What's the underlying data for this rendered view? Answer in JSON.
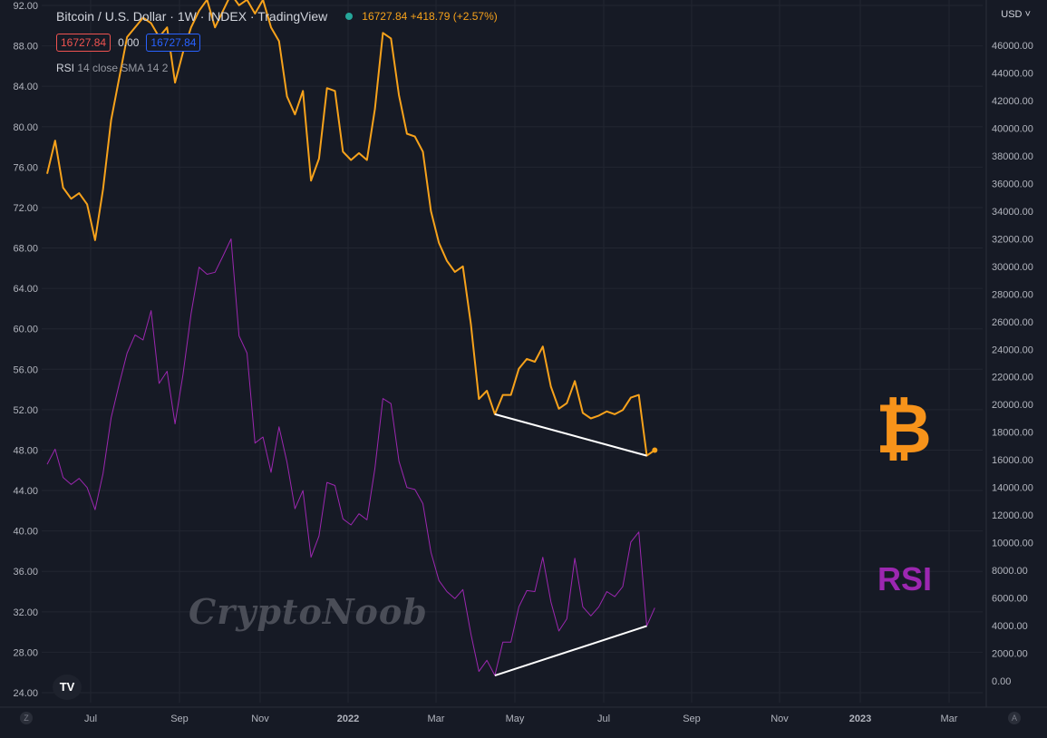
{
  "header": {
    "title": "Bitcoin / U.S. Dollar · 1W · INDEX · TradingView",
    "quote": "16727.84 +418.79 (+2.57%)",
    "value_red": "16727.84",
    "value_zero": "0.00",
    "value_blue": "16727.84",
    "indicator_name": "RSI",
    "indicator_params": "14 close SMA 14 2",
    "currency": "USD"
  },
  "annotations": {
    "btc_symbol": "₿",
    "rsi_text": "RSI",
    "watermark": "CryptoNoob",
    "tv_logo": "TV",
    "corner_left": "Z",
    "corner_right": "A"
  },
  "colors": {
    "background": "#161a25",
    "price_line": "#f7a21b",
    "rsi_line": "#9c27b0",
    "trend_line": "#ffffff",
    "grid": "#222631",
    "axis_text": "#b2b5be"
  },
  "chart_data": {
    "type": "line",
    "title": "Bitcoin / U.S. Dollar · 1W · INDEX · TradingView",
    "x_ticks": [
      "Jul",
      "Sep",
      "Nov",
      "2022",
      "Mar",
      "May",
      "Jul",
      "Sep",
      "Nov",
      "2023",
      "Mar"
    ],
    "left_axis": {
      "label": "RSI",
      "ticks": [
        "24.00",
        "28.00",
        "32.00",
        "36.00",
        "40.00",
        "44.00",
        "48.00",
        "52.00",
        "56.00",
        "60.00",
        "64.00",
        "68.00",
        "72.00",
        "76.00",
        "80.00",
        "84.00",
        "88.00",
        "92.00"
      ],
      "ylim": [
        24,
        92
      ]
    },
    "right_axis": {
      "label": "USD",
      "ticks": [
        "0.00",
        "2000.00",
        "4000.00",
        "6000.00",
        "8000.00",
        "10000.00",
        "12000.00",
        "14000.00",
        "16000.00",
        "18000.00",
        "20000.00",
        "22000.00",
        "24000.00",
        "26000.00",
        "28000.00",
        "30000.00",
        "32000.00",
        "34000.00",
        "36000.00",
        "38000.00",
        "40000.00",
        "42000.00",
        "44000.00",
        "46000.00"
      ],
      "ylim": [
        0,
        47500
      ]
    },
    "series": [
      {
        "name": "BTCUSD",
        "axis": "right",
        "values": [
          36700,
          39100,
          35700,
          34900,
          35300,
          34500,
          31900,
          35600,
          40600,
          43600,
          46600,
          47300,
          48000,
          47600,
          46600,
          47300,
          43300,
          45500,
          47300,
          48500,
          49300,
          47300,
          48500,
          49700,
          48900,
          49300,
          48300,
          49300,
          47300,
          46300,
          42300,
          41000,
          42700,
          36200,
          37800,
          42900,
          42700,
          38300,
          37700,
          38200,
          37700,
          41400,
          46900,
          46500,
          42400,
          39600,
          39400,
          38300,
          34000,
          31700,
          30400,
          29600,
          30000,
          25800,
          20400,
          21000,
          19300,
          20700,
          20700,
          22600,
          23300,
          23100,
          24200,
          21300,
          19700,
          20100,
          21700,
          19400,
          19000,
          19200,
          19500,
          19300,
          19600,
          20500,
          20700,
          16300,
          16700
        ]
      },
      {
        "name": "RSI 14 close",
        "axis": "left",
        "values": [
          46.6,
          48.1,
          45.3,
          44.6,
          45.2,
          44.3,
          42.1,
          45.7,
          51.2,
          54.5,
          57.6,
          59.4,
          58.9,
          61.8,
          54.6,
          55.8,
          50.6,
          55.5,
          61.5,
          66.1,
          65.4,
          65.6,
          67.2,
          68.9,
          59.3,
          57.6,
          48.7,
          49.3,
          45.8,
          50.3,
          46.8,
          42.2,
          44.0,
          37.4,
          39.5,
          44.8,
          44.5,
          41.2,
          40.6,
          41.7,
          41.1,
          46.2,
          53.1,
          52.6,
          46.9,
          44.3,
          44.1,
          42.7,
          37.9,
          35.1,
          34.0,
          33.3,
          34.2,
          29.8,
          26.1,
          27.2,
          25.7,
          29.0,
          29.0,
          32.5,
          34.1,
          34.0,
          37.4,
          33.0,
          30.1,
          31.3,
          37.3,
          32.5,
          31.6,
          32.5,
          34.0,
          33.5,
          34.5,
          38.9,
          39.9,
          30.6,
          32.4
        ]
      }
    ],
    "trendlines": [
      {
        "axis": "right",
        "from": {
          "index": 56,
          "value": 19300
        },
        "to": {
          "index": 75,
          "value": 16300
        }
      },
      {
        "axis": "left",
        "from": {
          "index": 56,
          "value": 25.7
        },
        "to": {
          "index": 75,
          "value": 30.6
        }
      }
    ]
  }
}
